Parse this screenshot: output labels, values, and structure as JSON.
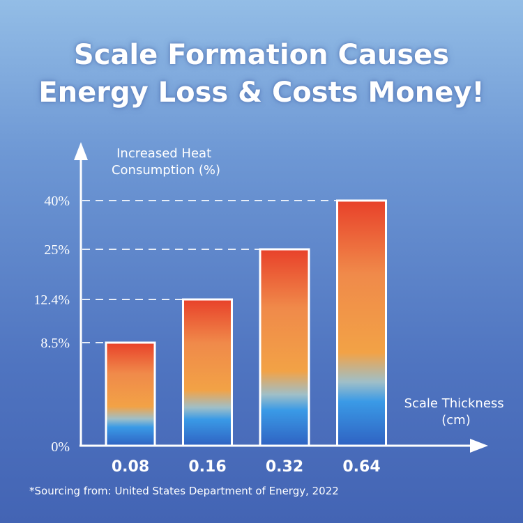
{
  "title_lines": [
    "Scale Formation Causes",
    "Energy Loss & Costs Money!"
  ],
  "source_note": "*Sourcing from: United States Department of Energy, 2022",
  "colors": {
    "bar_top_high": "#e8412a",
    "bar_orange": "#f2a246",
    "bar_blue": "#3a9ae6",
    "bar_bottom": "#2f62c2",
    "axis": "#ffffff"
  },
  "chart_data": {
    "type": "bar",
    "categories": [
      "0.08",
      "0.16",
      "0.32",
      "0.64"
    ],
    "values": [
      8.5,
      12.4,
      25,
      40
    ],
    "value_labels": [
      "8.5%",
      "12.4%",
      "25%",
      "40%"
    ],
    "zero_label": "0%",
    "ylabel_lines": [
      "Increased Heat",
      "Consumption (%)"
    ],
    "xlabel_lines": [
      "Scale Thickness",
      "(cm)"
    ],
    "grid": false,
    "legend": "none"
  }
}
